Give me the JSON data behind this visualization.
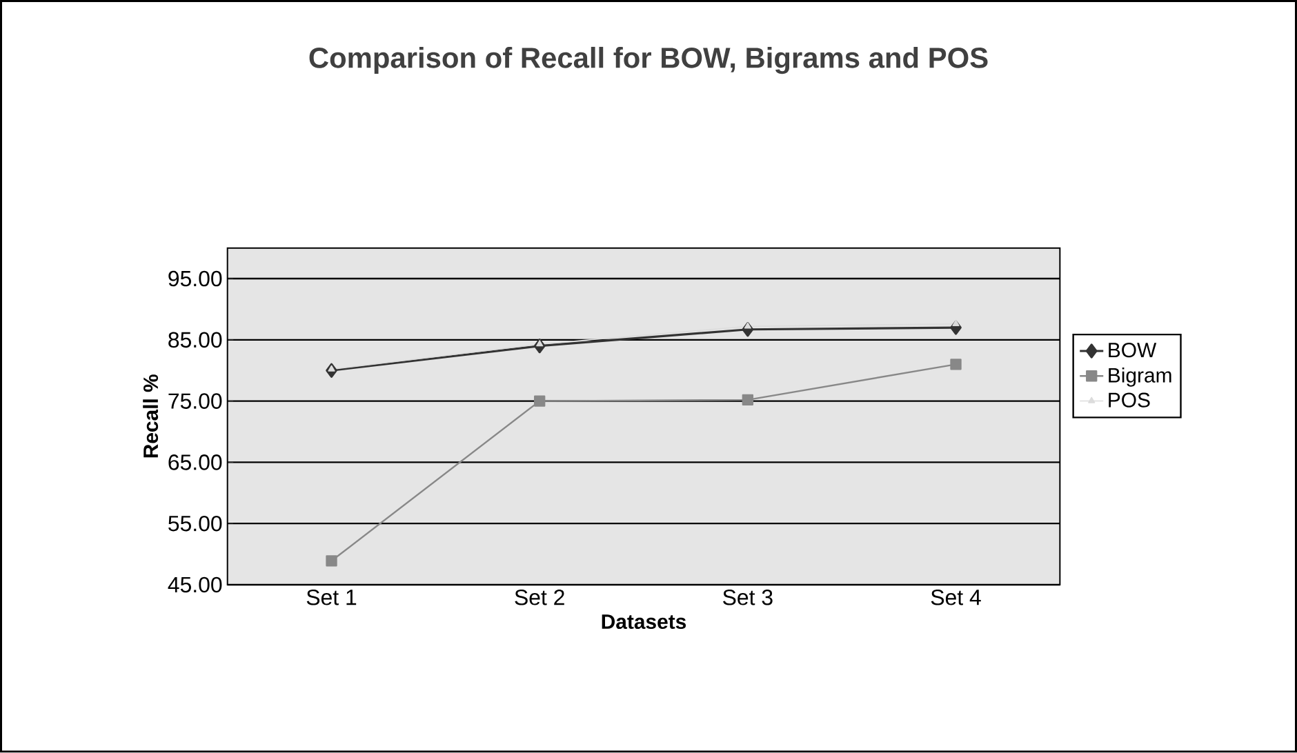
{
  "chart_data": {
    "type": "line",
    "title": "Comparison of Recall for BOW, Bigrams and POS",
    "xlabel": "Datasets",
    "ylabel": "Recall %",
    "categories": [
      "Set 1",
      "Set 2",
      "Set 3",
      "Set 4"
    ],
    "series": [
      {
        "name": "BOW",
        "color": "#333333",
        "marker": "diamond",
        "values": [
          80.0,
          84.0,
          86.7,
          87.0
        ]
      },
      {
        "name": "Bigram",
        "color": "#888888",
        "marker": "square",
        "values": [
          48.9,
          75.0,
          75.2,
          81.0
        ]
      },
      {
        "name": "POS",
        "color": "#dcdcdc",
        "marker": "triangle",
        "values": [
          80.2,
          84.3,
          87.2,
          87.6
        ]
      }
    ],
    "ylim": [
      45,
      100
    ],
    "yticks": [
      {
        "value": 45,
        "label": "45.00"
      },
      {
        "value": 55,
        "label": "55.00"
      },
      {
        "value": 65,
        "label": "65.00"
      },
      {
        "value": 75,
        "label": "75.00"
      },
      {
        "value": 85,
        "label": "85.00"
      },
      {
        "value": 95,
        "label": "95.00"
      }
    ],
    "grid": "y",
    "legend": "right"
  }
}
